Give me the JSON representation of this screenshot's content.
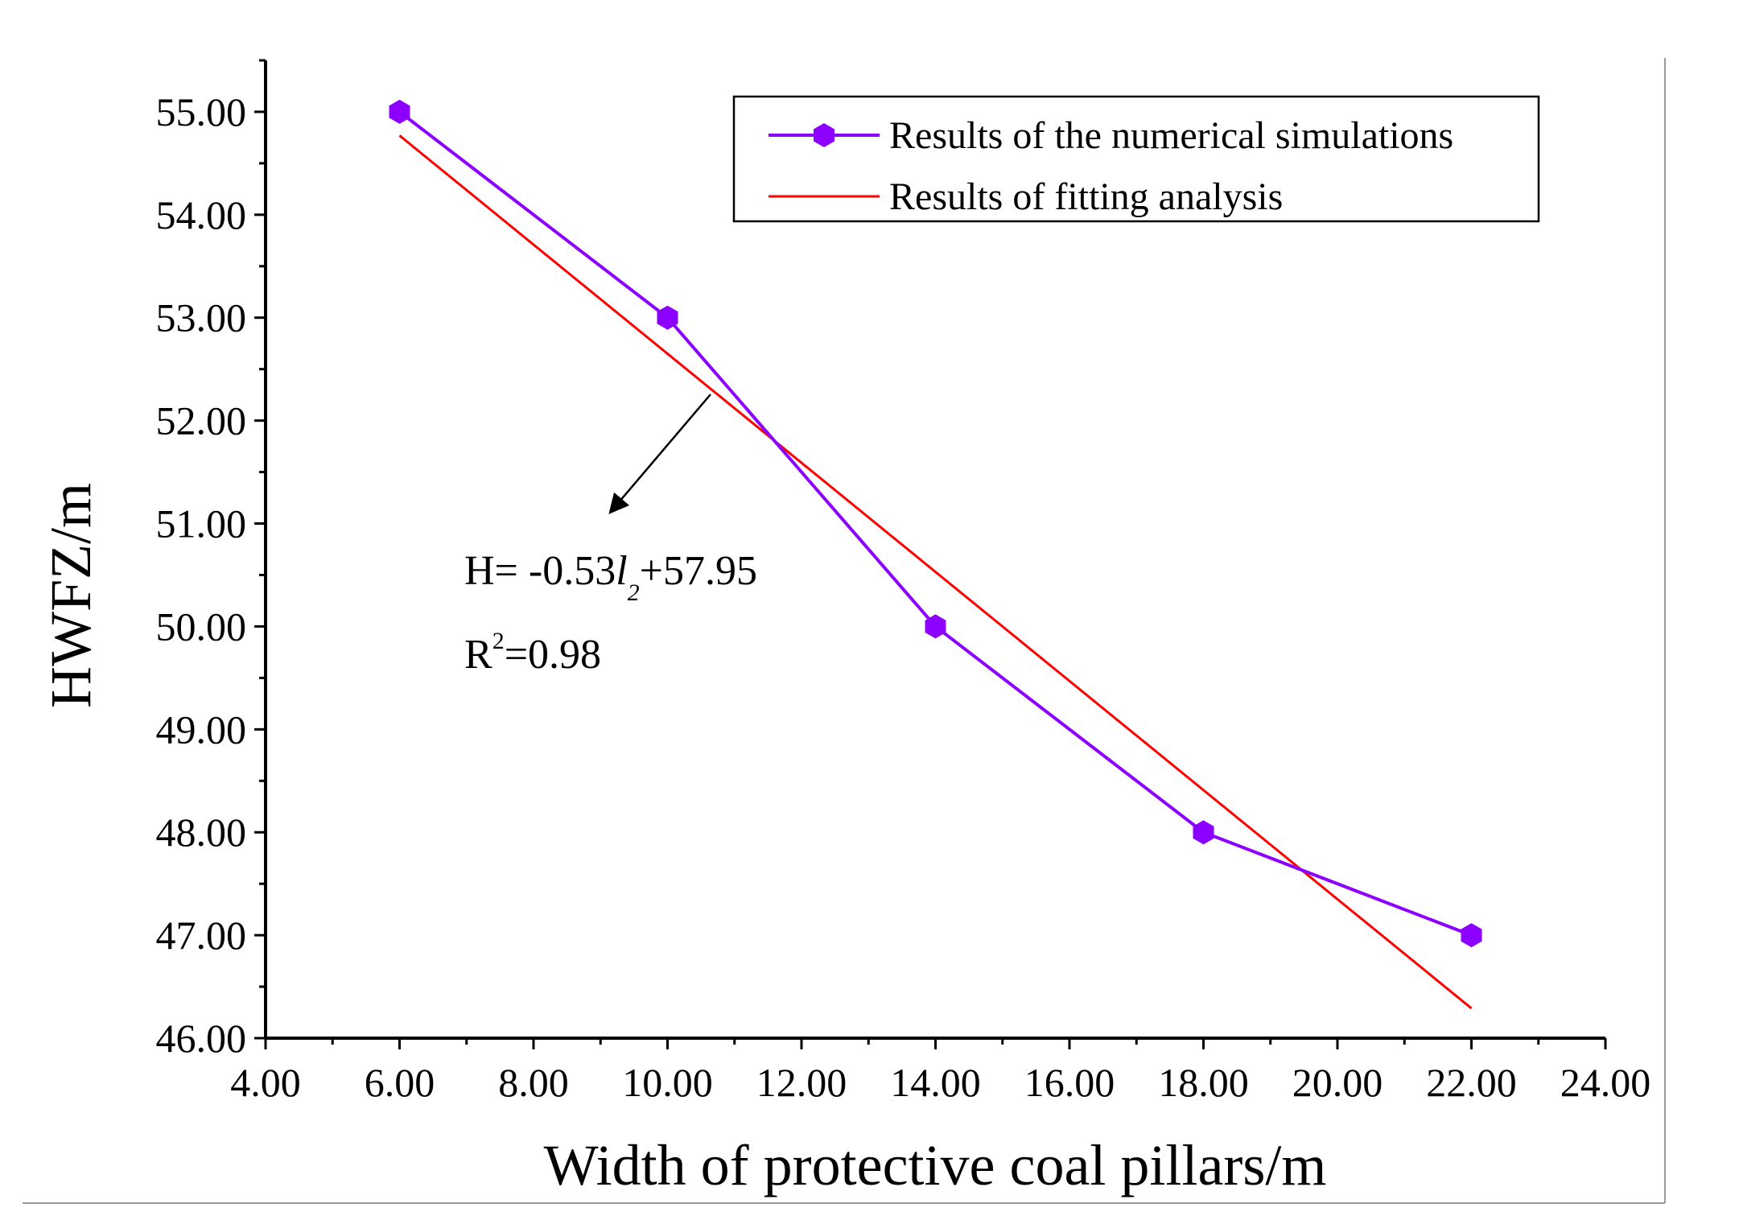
{
  "chart_data": {
    "type": "line",
    "title": "",
    "xlabel": "Width of protective coal pillars/m",
    "ylabel": "HWFZ/m",
    "xlim": [
      4,
      24
    ],
    "ylim": [
      46,
      55.5
    ],
    "x_ticks": [
      4,
      6,
      8,
      10,
      12,
      14,
      16,
      18,
      20,
      22,
      24
    ],
    "y_ticks": [
      46,
      47,
      48,
      49,
      50,
      51,
      52,
      53,
      54,
      55
    ],
    "x_tick_labels": [
      "4.00",
      "6.00",
      "8.00",
      "10.00",
      "12.00",
      "14.00",
      "16.00",
      "18.00",
      "20.00",
      "22.00",
      "24.00"
    ],
    "y_tick_labels": [
      "46.00",
      "47.00",
      "48.00",
      "49.00",
      "50.00",
      "51.00",
      "52.00",
      "53.00",
      "54.00",
      "55.00"
    ],
    "series": [
      {
        "name": "Results of the numerical simulations",
        "color": "#8B00FF",
        "marker": "hexagon",
        "x": [
          6,
          10,
          14,
          18,
          22
        ],
        "y": [
          55,
          53,
          50,
          48,
          47
        ]
      },
      {
        "name": "Results of fitting analysis",
        "color": "#FF0000",
        "marker": "none",
        "x": [
          6,
          22
        ],
        "y": [
          54.77,
          46.29
        ]
      }
    ],
    "legend": "top-right",
    "annotations": {
      "equation_prefix": "H= -0.53",
      "equation_var": "l",
      "equation_sub": "2",
      "equation_suffix": "+57.95",
      "r2_prefix": "R",
      "r2_sup": "2",
      "r2_suffix": "=0.98"
    }
  }
}
